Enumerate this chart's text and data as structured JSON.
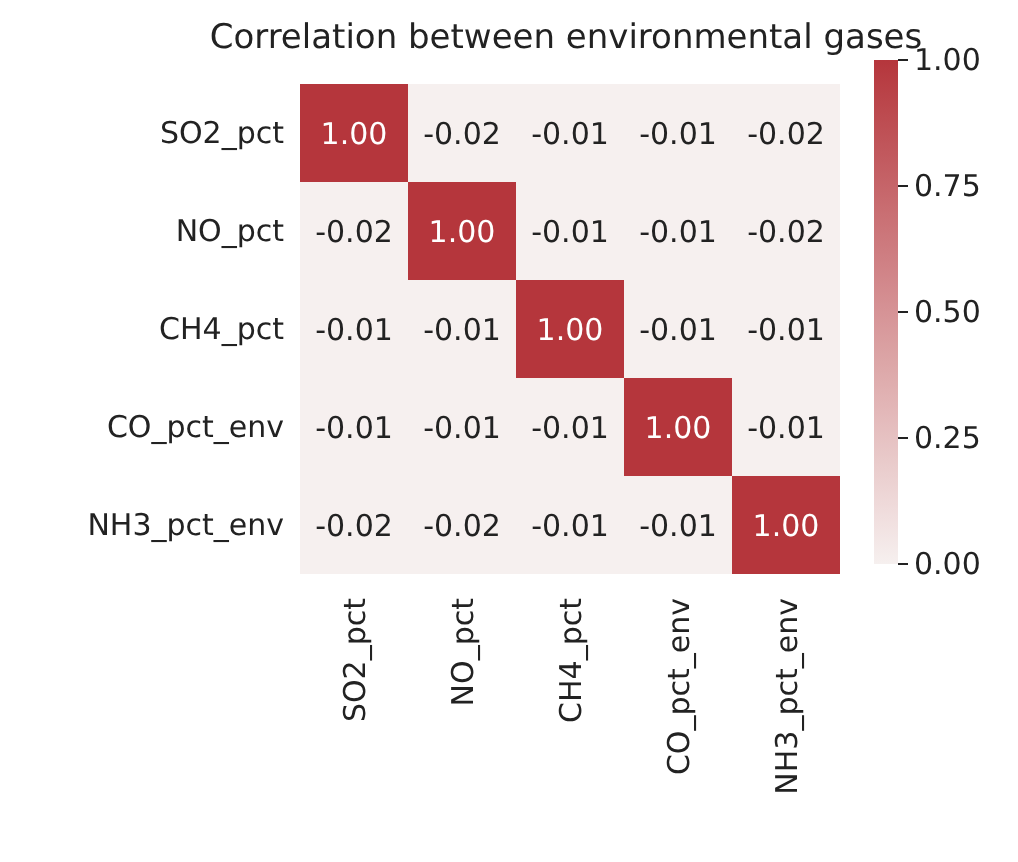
{
  "chart_data": {
    "type": "heatmap",
    "title": "Correlation between environmental gases",
    "categories": [
      "SO2_pct",
      "NO_pct",
      "CH4_pct",
      "CO_pct_env",
      "NH3_pct_env"
    ],
    "y_categories": [
      "SO2_pct",
      "NO_pct",
      "CH4_pct",
      "CO_pct_env",
      "NH3_pct_env"
    ],
    "cells": [
      [
        1.0,
        -0.02,
        -0.01,
        -0.01,
        -0.02
      ],
      [
        -0.02,
        1.0,
        -0.01,
        -0.01,
        -0.02
      ],
      [
        -0.01,
        -0.01,
        1.0,
        -0.01,
        -0.01
      ],
      [
        -0.01,
        -0.01,
        -0.01,
        1.0,
        -0.01
      ],
      [
        -0.02,
        -0.02,
        -0.01,
        -0.01,
        1.0
      ]
    ],
    "cell_labels": [
      [
        "1.00",
        "-0.02",
        "-0.01",
        "-0.01",
        "-0.02"
      ],
      [
        "-0.02",
        "1.00",
        "-0.01",
        "-0.01",
        "-0.02"
      ],
      [
        "-0.01",
        "-0.01",
        "1.00",
        "-0.01",
        "-0.01"
      ],
      [
        "-0.01",
        "-0.01",
        "-0.01",
        "1.00",
        "-0.01"
      ],
      [
        "-0.02",
        "-0.02",
        "-0.01",
        "-0.01",
        "1.00"
      ]
    ],
    "clim": [
      0,
      1
    ],
    "cticks": [
      {
        "value": 0,
        "label": "0.00"
      },
      {
        "value": 0.25,
        "label": "0.25"
      },
      {
        "value": 0.5,
        "label": "0.50"
      },
      {
        "value": 0.75,
        "label": "0.75"
      },
      {
        "value": 1,
        "label": "1.00"
      }
    ]
  }
}
